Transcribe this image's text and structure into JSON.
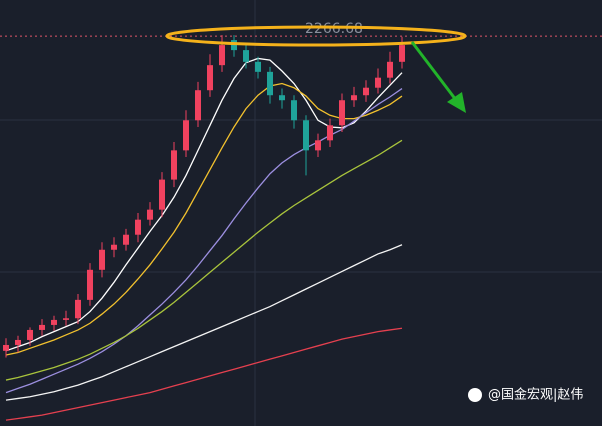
{
  "chart_data": {
    "type": "candlestick",
    "ylim": [
      1800,
      2310
    ],
    "up_color": "#f0425f",
    "down_color": "#1fa39a",
    "price_line": {
      "value": 2266.68,
      "color": "#e0566a"
    },
    "open": [
      1890,
      1897,
      1903,
      1915,
      1921,
      1927,
      1929,
      1951,
      1987,
      2011,
      2017,
      2029,
      2047,
      2059,
      2095,
      2130,
      2166,
      2202,
      2232,
      2262,
      2250,
      2236,
      2224,
      2196,
      2190,
      2166,
      2130,
      2142,
      2160,
      2190,
      2196,
      2205,
      2217,
      2236
    ],
    "high": [
      1905,
      1908,
      1918,
      1928,
      1932,
      1938,
      1958,
      1995,
      2020,
      2026,
      2036,
      2055,
      2068,
      2104,
      2140,
      2178,
      2212,
      2245,
      2268,
      2268,
      2256,
      2242,
      2230,
      2204,
      2196,
      2172,
      2150,
      2168,
      2198,
      2206,
      2214,
      2228,
      2248,
      2266
    ],
    "low": [
      1882,
      1888,
      1896,
      1908,
      1914,
      1920,
      1922,
      1944,
      1978,
      2002,
      2010,
      2020,
      2040,
      2050,
      2086,
      2122,
      2158,
      2194,
      2224,
      2242,
      2228,
      2216,
      2186,
      2180,
      2156,
      2100,
      2122,
      2134,
      2152,
      2182,
      2188,
      2198,
      2210,
      2228
    ],
    "close": [
      1897,
      1903,
      1915,
      1921,
      1927,
      1929,
      1951,
      1987,
      2011,
      2017,
      2029,
      2047,
      2059,
      2095,
      2130,
      2166,
      2202,
      2232,
      2256,
      2250,
      2236,
      2224,
      2196,
      2190,
      2166,
      2130,
      2142,
      2160,
      2190,
      2196,
      2205,
      2217,
      2236,
      2256
    ],
    "series": [
      {
        "color": "#ffffff",
        "values": [
          1890,
          1895,
          1900,
          1907,
          1913,
          1919,
          1925,
          1937,
          1953,
          1972,
          1993,
          2013,
          2033,
          2052,
          2074,
          2100,
          2130,
          2160,
          2190,
          2216,
          2235,
          2240,
          2238,
          2225,
          2210,
          2190,
          2166,
          2158,
          2157,
          2163,
          2177,
          2193,
          2208,
          2223
        ]
      },
      {
        "color": "#f2c12e",
        "values": [
          1885,
          1888,
          1893,
          1898,
          1903,
          1909,
          1915,
          1923,
          1934,
          1946,
          1960,
          1976,
          1993,
          2012,
          2032,
          2055,
          2081,
          2107,
          2133,
          2158,
          2180,
          2196,
          2207,
          2210,
          2205,
          2195,
          2180,
          2172,
          2168,
          2168,
          2172,
          2178,
          2185,
          2195
        ]
      },
      {
        "color": "#9c8fe0",
        "values": [
          1840,
          1845,
          1850,
          1856,
          1862,
          1868,
          1874,
          1881,
          1889,
          1898,
          1908,
          1920,
          1933,
          1946,
          1960,
          1975,
          1992,
          2010,
          2028,
          2048,
          2067,
          2085,
          2102,
          2115,
          2125,
          2133,
          2140,
          2148,
          2155,
          2165,
          2175,
          2185,
          2194,
          2204
        ]
      },
      {
        "color": "#a9c43c",
        "values": [
          1855,
          1858,
          1862,
          1866,
          1870,
          1875,
          1880,
          1886,
          1893,
          1900,
          1908,
          1917,
          1927,
          1937,
          1948,
          1960,
          1972,
          1984,
          1996,
          2008,
          2020,
          2032,
          2043,
          2054,
          2064,
          2073,
          2082,
          2091,
          2100,
          2108,
          2116,
          2124,
          2133,
          2142
        ]
      },
      {
        "color": "#f4f4f4",
        "values": [
          1831,
          1833,
          1835,
          1838,
          1841,
          1845,
          1849,
          1854,
          1859,
          1865,
          1871,
          1877,
          1883,
          1889,
          1895,
          1901,
          1907,
          1913,
          1919,
          1925,
          1931,
          1937,
          1943,
          1950,
          1957,
          1964,
          1971,
          1978,
          1985,
          1992,
          1999,
          2006,
          2011,
          2017
        ]
      },
      {
        "color": "#e5404f",
        "values": [
          1807,
          1809,
          1811,
          1813,
          1816,
          1819,
          1822,
          1825,
          1828,
          1831,
          1834,
          1837,
          1840,
          1844,
          1848,
          1852,
          1856,
          1860,
          1864,
          1868,
          1872,
          1876,
          1880,
          1884,
          1888,
          1892,
          1896,
          1900,
          1904,
          1907,
          1910,
          1913,
          1915,
          1917
        ]
      }
    ],
    "watermark": "@国金宏观|赵伟"
  }
}
